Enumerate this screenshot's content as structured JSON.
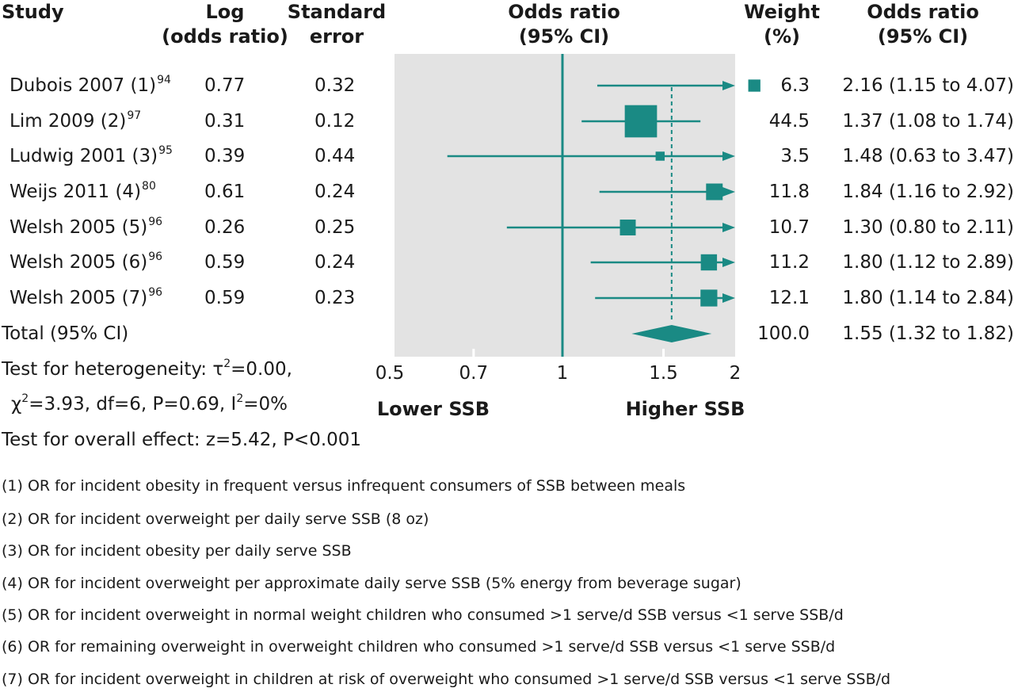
{
  "headers": {
    "study": "Study",
    "log_or": [
      "Log",
      "(odds ratio)"
    ],
    "se": [
      "Standard",
      "error"
    ],
    "or_plot": [
      "Odds ratio",
      "(95% CI)"
    ],
    "weight": [
      "Weight",
      "(%)"
    ],
    "or_text": [
      "Odds ratio",
      "(95% CI)"
    ]
  },
  "studies": [
    {
      "name": "Dubois 2007 (1)",
      "ref": "94",
      "log_or": "0.77",
      "se": "0.32",
      "weight": "6.3",
      "ci_text": "2.16 (1.15 to 4.07)"
    },
    {
      "name": "Lim 2009 (2)",
      "ref": "97",
      "log_or": "0.31",
      "se": "0.12",
      "weight": "44.5",
      "ci_text": "1.37 (1.08 to 1.74)"
    },
    {
      "name": "Ludwig 2001 (3)",
      "ref": "95",
      "log_or": "0.39",
      "se": "0.44",
      "weight": "3.5",
      "ci_text": "1.48 (0.63 to 3.47)"
    },
    {
      "name": "Weijs 2011 (4)",
      "ref": "80",
      "log_or": "0.61",
      "se": "0.24",
      "weight": "11.8",
      "ci_text": "1.84 (1.16 to 2.92)"
    },
    {
      "name": "Welsh 2005 (5)",
      "ref": "96",
      "log_or": "0.26",
      "se": "0.25",
      "weight": "10.7",
      "ci_text": "1.30 (0.80 to 2.11)"
    },
    {
      "name": "Welsh 2005 (6)",
      "ref": "96",
      "log_or": "0.59",
      "se": "0.24",
      "weight": "11.2",
      "ci_text": "1.80 (1.12 to 2.89)"
    },
    {
      "name": "Welsh 2005 (7)",
      "ref": "96",
      "log_or": "0.59",
      "se": "0.23",
      "weight": "12.1",
      "ci_text": "1.80 (1.14 to 2.84)"
    }
  ],
  "total": {
    "label": "Total (95% CI)",
    "weight": "100.0",
    "ci_text": "1.55 (1.32 to 1.82)"
  },
  "stats": {
    "heterogeneity_prefix": "Test for heterogeneity: τ",
    "heterogeneity_suffix": "=0.00,",
    "chi_prefix": "χ",
    "chi_suffix": "=3.93, df=6, P=0.69, I",
    "chi_tail": "=0%",
    "sup2": "2",
    "overall": "Test for overall effect: z=5.42, P<0.001"
  },
  "axis_labels": {
    "left": "Lower SSB",
    "right": "Higher SSB"
  },
  "footnotes": [
    "(1) OR for incident obesity in frequent versus infrequent consumers of SSB between meals",
    "(2) OR for incident overweight per daily serve SSB (8 oz)",
    "(3) OR for incident obesity per daily serve SSB",
    "(4) OR for incident overweight per approximate daily serve SSB (5% energy from beverage sugar)",
    "(5) OR for incident overweight in normal weight children who consumed >1 serve/d SSB versus <1 serve SSB/d",
    "(6) OR for remaining overweight in overweight children who consumed >1 serve/d SSB versus <1 serve SSB/d",
    "(7) OR for incident overweight in children at risk of overweight who consumed >1 serve/d SSB versus <1 serve SSB/d"
  ],
  "colors": {
    "accent": "#1a8a84",
    "panel": "#e3e3e3",
    "text": "#1a1a1a"
  },
  "chart_data": {
    "type": "forest",
    "x_scale": "log",
    "xlim": [
      0.5,
      2
    ],
    "ticks": [
      "0.5",
      "0.7",
      "1",
      "1.5",
      "2"
    ],
    "tick_values": [
      0.5,
      0.7,
      1,
      1.5,
      2
    ],
    "null_line": 1,
    "pooled_line": 1.55,
    "grid": false,
    "series": [
      {
        "or": 2.16,
        "lo": 1.15,
        "hi": 4.07,
        "weight": 6.3
      },
      {
        "or": 1.37,
        "lo": 1.08,
        "hi": 1.74,
        "weight": 44.5
      },
      {
        "or": 1.48,
        "lo": 0.63,
        "hi": 3.47,
        "weight": 3.5
      },
      {
        "or": 1.84,
        "lo": 1.16,
        "hi": 2.92,
        "weight": 11.8
      },
      {
        "or": 1.3,
        "lo": 0.8,
        "hi": 2.11,
        "weight": 10.7
      },
      {
        "or": 1.8,
        "lo": 1.12,
        "hi": 2.89,
        "weight": 11.2
      },
      {
        "or": 1.8,
        "lo": 1.14,
        "hi": 2.84,
        "weight": 12.1
      }
    ],
    "pooled": {
      "or": 1.55,
      "lo": 1.32,
      "hi": 1.82
    }
  }
}
